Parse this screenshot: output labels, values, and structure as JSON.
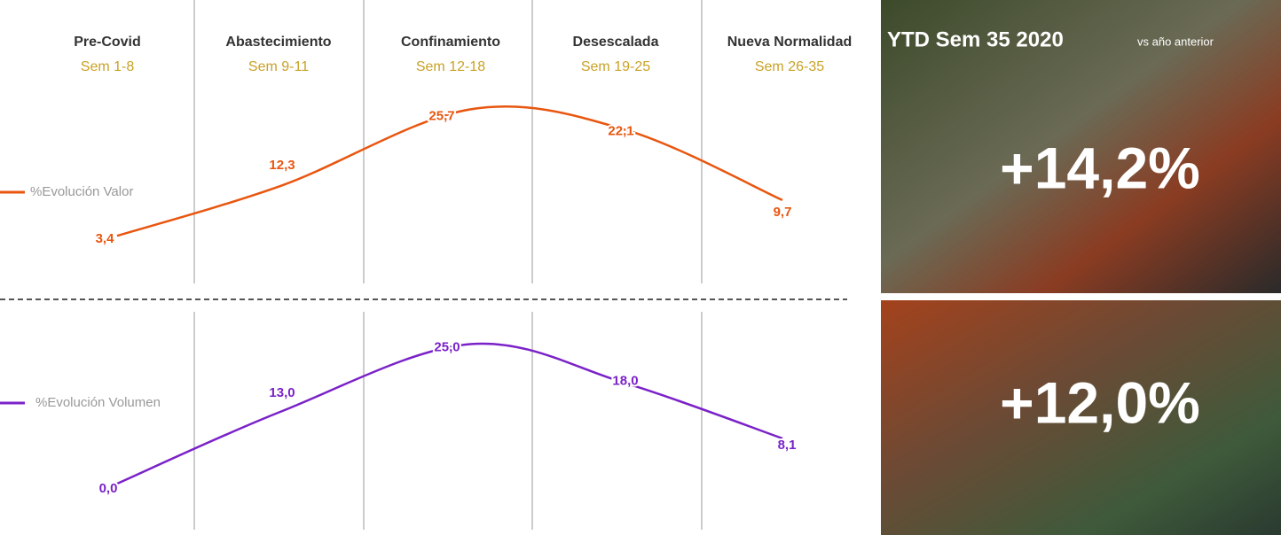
{
  "phases": [
    {
      "name": "Pre-Covid",
      "weeks": "Sem 1-8"
    },
    {
      "name": "Abastecimiento",
      "weeks": "Sem 9-11"
    },
    {
      "name": "Confinamiento",
      "weeks": "Sem 12-18"
    },
    {
      "name": "Desescalada",
      "weeks": "Sem 19-25"
    },
    {
      "name": "Nueva Normalidad",
      "weeks": "Sem 26-35"
    }
  ],
  "chart_data": [
    {
      "type": "line",
      "series": [
        {
          "name": "%Evolución Valor",
          "color": "#e8560f",
          "values": [
            3.4,
            12.3,
            25.7,
            22.1,
            9.7
          ],
          "value_labels": [
            "3,4",
            "12,3",
            "25,7",
            "22,1",
            "9,7"
          ]
        }
      ]
    },
    {
      "type": "line",
      "series": [
        {
          "name": "%Evolución Volumen",
          "color": "#7a22c8",
          "values": [
            0.0,
            13.0,
            25.0,
            18.0,
            8.1
          ],
          "value_labels": [
            "0,0",
            "13,0",
            "25,0",
            "18,0",
            "8,1"
          ]
        }
      ]
    }
  ],
  "summary": {
    "title": "YTD Sem 35 2020",
    "subtitle": "vs año anterior",
    "values": [
      14.2,
      12.0
    ],
    "value_labels": [
      "+14,2%",
      "+12,0%"
    ]
  }
}
